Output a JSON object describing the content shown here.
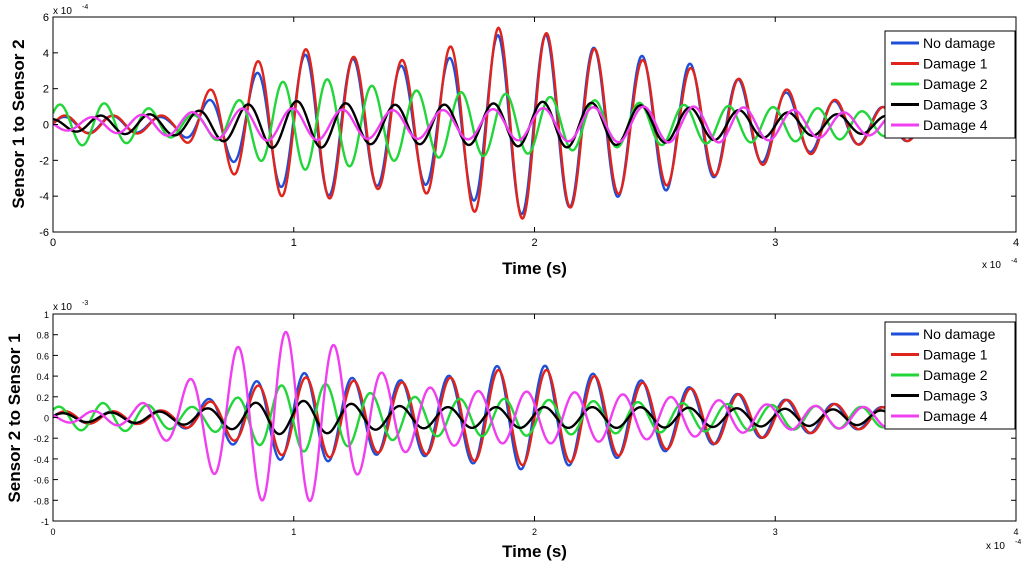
{
  "chart_data": [
    {
      "type": "line",
      "title": "",
      "xlabel": "Time (s)",
      "ylabel": "Sensor 1 to Sensor 2",
      "x_multiplier": "x 10",
      "x_multiplier_exp": "-4",
      "y_multiplier": "x 10",
      "y_multiplier_exp": "-4",
      "xlim": [
        0,
        4
      ],
      "ylim": [
        -6,
        6
      ],
      "xticks": [
        0,
        1,
        2,
        3,
        4
      ],
      "xtick_labels": [
        "0",
        "1",
        "2",
        "3",
        "4"
      ],
      "yticks": [
        -6,
        -4,
        -2,
        0,
        2,
        4,
        6
      ],
      "ytick_labels": [
        "-6",
        "-4",
        "-2",
        "0",
        "2",
        "4",
        "6"
      ],
      "grid": false,
      "legend_position": "top-right",
      "series": [
        {
          "name": "No damage",
          "color": "#1f4fd8",
          "freq": 5.0,
          "phase": 0.1,
          "envelope": [
            [
              0,
              0.4
            ],
            [
              0.2,
              0.5
            ],
            [
              0.5,
              0.4
            ],
            [
              0.7,
              1.7
            ],
            [
              0.9,
              3.3
            ],
            [
              1.1,
              4.1
            ],
            [
              1.3,
              3.5
            ],
            [
              1.5,
              3.2
            ],
            [
              1.7,
              3.9
            ],
            [
              1.85,
              5.0
            ],
            [
              2.05,
              5.0
            ],
            [
              2.2,
              4.4
            ],
            [
              2.4,
              3.9
            ],
            [
              2.6,
              3.6
            ],
            [
              2.8,
              2.7
            ],
            [
              3.0,
              1.9
            ],
            [
              3.2,
              1.4
            ],
            [
              3.4,
              1.0
            ],
            [
              3.6,
              0.9
            ],
            [
              3.8,
              0.6
            ],
            [
              3.9,
              0.4
            ]
          ]
        },
        {
          "name": "Damage 1",
          "color": "#e0231b",
          "freq": 5.0,
          "phase": 0.0,
          "envelope": [
            [
              0,
              0.5
            ],
            [
              0.2,
              0.5
            ],
            [
              0.5,
              0.5
            ],
            [
              0.7,
              2.4
            ],
            [
              0.9,
              3.9
            ],
            [
              1.1,
              4.3
            ],
            [
              1.3,
              3.6
            ],
            [
              1.5,
              3.6
            ],
            [
              1.7,
              4.6
            ],
            [
              1.85,
              5.4
            ],
            [
              2.05,
              5.1
            ],
            [
              2.2,
              4.4
            ],
            [
              2.4,
              3.7
            ],
            [
              2.6,
              3.3
            ],
            [
              2.8,
              2.7
            ],
            [
              3.0,
              2.1
            ],
            [
              3.2,
              1.5
            ],
            [
              3.4,
              1.0
            ],
            [
              3.6,
              0.9
            ],
            [
              3.8,
              0.6
            ],
            [
              3.9,
              0.4
            ]
          ]
        },
        {
          "name": "Damage 2",
          "color": "#22d63a",
          "freq": 5.4,
          "phase": 0.6,
          "envelope": [
            [
              0,
              1.1
            ],
            [
              0.2,
              1.2
            ],
            [
              0.4,
              0.9
            ],
            [
              0.6,
              0.5
            ],
            [
              0.75,
              1.2
            ],
            [
              0.9,
              2.3
            ],
            [
              1.1,
              2.6
            ],
            [
              1.3,
              2.2
            ],
            [
              1.5,
              1.9
            ],
            [
              1.7,
              1.8
            ],
            [
              1.9,
              1.7
            ],
            [
              2.1,
              1.5
            ],
            [
              2.3,
              1.3
            ],
            [
              2.6,
              1.1
            ],
            [
              2.9,
              1.0
            ],
            [
              3.2,
              0.9
            ],
            [
              3.5,
              0.6
            ],
            [
              3.8,
              0.5
            ],
            [
              3.9,
              0.3
            ]
          ]
        },
        {
          "name": "Damage 3",
          "color": "#000000",
          "freq": 4.9,
          "phase": 1.8,
          "envelope": [
            [
              0,
              0.3
            ],
            [
              0.2,
              0.5
            ],
            [
              0.5,
              0.6
            ],
            [
              0.75,
              1.0
            ],
            [
              0.9,
              1.3
            ],
            [
              1.1,
              1.3
            ],
            [
              1.3,
              1.1
            ],
            [
              1.6,
              1.1
            ],
            [
              1.9,
              1.2
            ],
            [
              2.1,
              1.3
            ],
            [
              2.4,
              1.1
            ],
            [
              2.7,
              0.9
            ],
            [
              3.0,
              0.7
            ],
            [
              3.4,
              0.5
            ],
            [
              3.7,
              0.4
            ],
            [
              3.9,
              0.3
            ]
          ]
        },
        {
          "name": "Damage 4",
          "color": "#f03ff0",
          "freq": 4.8,
          "phase": 3.0,
          "envelope": [
            [
              0,
              0.3
            ],
            [
              0.3,
              0.5
            ],
            [
              0.6,
              0.7
            ],
            [
              0.8,
              0.9
            ],
            [
              1.0,
              0.9
            ],
            [
              1.3,
              0.8
            ],
            [
              1.6,
              0.8
            ],
            [
              2.0,
              0.9
            ],
            [
              2.4,
              1.0
            ],
            [
              2.8,
              1.0
            ],
            [
              3.1,
              0.8
            ],
            [
              3.4,
              0.6
            ],
            [
              3.7,
              0.5
            ],
            [
              3.9,
              0.4
            ]
          ]
        }
      ]
    },
    {
      "type": "line",
      "title": "",
      "xlabel": "Time (s)",
      "ylabel": "Sensor 2 to Sensor 1",
      "x_multiplier": "x 10",
      "x_multiplier_exp": "-4",
      "y_multiplier": "x 10",
      "y_multiplier_exp": "-3",
      "xlim": [
        0,
        4
      ],
      "ylim": [
        -1,
        1
      ],
      "xticks": [
        0,
        1,
        2,
        3,
        4
      ],
      "xtick_labels": [
        "0",
        "1",
        "2",
        "3",
        "4"
      ],
      "yticks": [
        -1,
        -0.8,
        -0.6,
        -0.4,
        -0.2,
        0,
        0.2,
        0.4,
        0.6,
        0.8,
        1
      ],
      "ytick_labels": [
        "-1",
        "-0.8",
        "-0.6",
        "-0.4",
        "-0.2",
        "0",
        "0.2",
        "0.4",
        "0.6",
        "0.8",
        "1"
      ],
      "grid": false,
      "legend_position": "top-right",
      "series": [
        {
          "name": "No damage",
          "color": "#1f4fd8",
          "freq": 5.0,
          "phase": 0.2,
          "envelope": [
            [
              0,
              0.05
            ],
            [
              0.3,
              0.06
            ],
            [
              0.5,
              0.07
            ],
            [
              0.7,
              0.22
            ],
            [
              0.9,
              0.4
            ],
            [
              1.1,
              0.44
            ],
            [
              1.3,
              0.36
            ],
            [
              1.5,
              0.36
            ],
            [
              1.7,
              0.42
            ],
            [
              1.85,
              0.5
            ],
            [
              2.05,
              0.5
            ],
            [
              2.25,
              0.42
            ],
            [
              2.5,
              0.34
            ],
            [
              2.8,
              0.24
            ],
            [
              3.0,
              0.18
            ],
            [
              3.3,
              0.12
            ],
            [
              3.6,
              0.08
            ],
            [
              3.9,
              0.05
            ]
          ]
        },
        {
          "name": "Damage 1",
          "color": "#e0231b",
          "freq": 5.0,
          "phase": 0.0,
          "envelope": [
            [
              0,
              0.06
            ],
            [
              0.3,
              0.06
            ],
            [
              0.5,
              0.07
            ],
            [
              0.7,
              0.18
            ],
            [
              0.9,
              0.35
            ],
            [
              1.1,
              0.4
            ],
            [
              1.3,
              0.34
            ],
            [
              1.5,
              0.34
            ],
            [
              1.7,
              0.4
            ],
            [
              1.85,
              0.46
            ],
            [
              2.05,
              0.46
            ],
            [
              2.25,
              0.4
            ],
            [
              2.5,
              0.32
            ],
            [
              2.8,
              0.24
            ],
            [
              3.0,
              0.18
            ],
            [
              3.3,
              0.12
            ],
            [
              3.6,
              0.08
            ],
            [
              3.9,
              0.05
            ]
          ]
        },
        {
          "name": "Damage 2",
          "color": "#22d63a",
          "freq": 5.4,
          "phase": 0.8,
          "envelope": [
            [
              0,
              0.1
            ],
            [
              0.2,
              0.14
            ],
            [
              0.4,
              0.12
            ],
            [
              0.6,
              0.1
            ],
            [
              0.75,
              0.18
            ],
            [
              0.9,
              0.3
            ],
            [
              1.1,
              0.34
            ],
            [
              1.3,
              0.24
            ],
            [
              1.6,
              0.18
            ],
            [
              1.9,
              0.18
            ],
            [
              2.2,
              0.16
            ],
            [
              2.6,
              0.14
            ],
            [
              3.0,
              0.12
            ],
            [
              3.4,
              0.1
            ],
            [
              3.8,
              0.06
            ],
            [
              3.9,
              0.04
            ]
          ]
        },
        {
          "name": "Damage 3",
          "color": "#000000",
          "freq": 5.0,
          "phase": 0.3,
          "envelope": [
            [
              0,
              0.04
            ],
            [
              0.3,
              0.05
            ],
            [
              0.5,
              0.06
            ],
            [
              0.7,
              0.1
            ],
            [
              0.9,
              0.16
            ],
            [
              1.1,
              0.16
            ],
            [
              1.3,
              0.12
            ],
            [
              1.6,
              0.1
            ],
            [
              2.0,
              0.1
            ],
            [
              2.4,
              0.1
            ],
            [
              2.8,
              0.09
            ],
            [
              3.2,
              0.08
            ],
            [
              3.6,
              0.06
            ],
            [
              3.9,
              0.04
            ]
          ]
        },
        {
          "name": "Damage 4",
          "color": "#f03ff0",
          "freq": 5.0,
          "phase": 2.6,
          "envelope": [
            [
              0,
              0.04
            ],
            [
              0.3,
              0.08
            ],
            [
              0.5,
              0.25
            ],
            [
              0.7,
              0.6
            ],
            [
              0.9,
              0.84
            ],
            [
              1.1,
              0.8
            ],
            [
              1.3,
              0.5
            ],
            [
              1.5,
              0.3
            ],
            [
              1.8,
              0.25
            ],
            [
              2.1,
              0.25
            ],
            [
              2.4,
              0.22
            ],
            [
              2.7,
              0.18
            ],
            [
              3.0,
              0.12
            ],
            [
              3.4,
              0.1
            ],
            [
              3.7,
              0.08
            ],
            [
              3.9,
              0.05
            ]
          ]
        }
      ]
    }
  ]
}
